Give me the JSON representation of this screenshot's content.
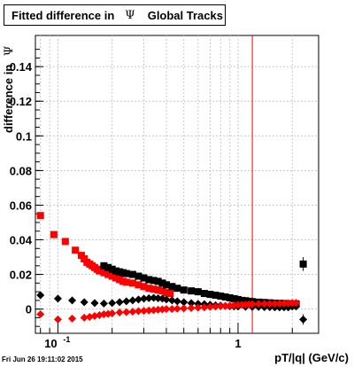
{
  "title": {
    "prefix": "Fitted difference in",
    "symbol": "Ψ",
    "suffix": "Global Tracks"
  },
  "ylabel": {
    "text": "difference in",
    "symbol": "Ψ"
  },
  "xlabel": "pT/|q| (GeV/c)",
  "timestamp": "Fri Jun 26 19:11:02 2015",
  "colors": {
    "series_black": "#000000",
    "series_red": "#ff0000",
    "marker_line": "#cc0000",
    "grid": "#c8c8c8"
  },
  "chart_data": {
    "type": "scatter",
    "x_scale": "log",
    "xlim": [
      0.075,
      2.8
    ],
    "ylim": [
      -0.014,
      0.158
    ],
    "grid": true,
    "y_ticks": [
      0,
      0.02,
      0.04,
      0.06,
      0.08,
      0.1,
      0.12,
      0.14
    ],
    "y_tick_labels": [
      "0",
      "0.02",
      "0.04",
      "0.06",
      "0.08",
      "0.1",
      "0.12",
      "0.14"
    ],
    "x_tick_labels": [
      {
        "value": 0.1,
        "base": "10",
        "exp": "-1"
      },
      {
        "value": 1,
        "base": "1",
        "exp": ""
      }
    ],
    "vertical_line": {
      "x": 1.2,
      "color": "#ff0000"
    },
    "series": [
      {
        "marker": "square",
        "color": "#ff0000",
        "x": [
          0.08,
          0.095,
          0.11,
          0.125,
          0.135,
          0.14,
          0.145,
          0.15,
          0.155,
          0.16,
          0.165,
          0.17,
          0.18,
          0.19,
          0.2,
          0.21,
          0.22,
          0.23,
          0.24,
          0.26,
          0.28,
          0.3,
          0.32,
          0.34,
          0.36,
          0.38,
          0.4,
          0.42
        ],
        "y": [
          0.054,
          0.043,
          0.039,
          0.034,
          0.031,
          0.029,
          0.027,
          0.026,
          0.025,
          0.024,
          0.023,
          0.022,
          0.021,
          0.02,
          0.019,
          0.018,
          0.017,
          0.016,
          0.0155,
          0.015,
          0.014,
          0.013,
          0.012,
          0.0115,
          0.011,
          0.0105,
          0.0095,
          0.009
        ]
      },
      {
        "marker": "square",
        "color": "#000000",
        "x": [
          0.18,
          0.19,
          0.2,
          0.21,
          0.22,
          0.23,
          0.24,
          0.26,
          0.28,
          0.3,
          0.32,
          0.34,
          0.36,
          0.38,
          0.4,
          0.43,
          0.46,
          0.5,
          0.55,
          0.6,
          0.65,
          0.7,
          0.75,
          0.8,
          0.85,
          0.9,
          0.95,
          1.0,
          1.05,
          1.1,
          1.15,
          1.2,
          1.3,
          1.4,
          1.5,
          1.6,
          1.7,
          1.8,
          1.9,
          2.0,
          2.1,
          2.3
        ],
        "y": [
          0.025,
          0.024,
          0.023,
          0.022,
          0.0215,
          0.021,
          0.0205,
          0.02,
          0.019,
          0.018,
          0.017,
          0.0165,
          0.016,
          0.015,
          0.014,
          0.013,
          0.012,
          0.011,
          0.0105,
          0.01,
          0.009,
          0.0085,
          0.008,
          0.0075,
          0.007,
          0.0065,
          0.006,
          0.0055,
          0.005,
          0.0048,
          0.0045,
          0.0043,
          0.004,
          0.0038,
          0.0036,
          0.0034,
          0.0033,
          0.0032,
          0.0031,
          0.003,
          0.003,
          0.026
        ]
      },
      {
        "marker": "diamond",
        "color": "#000000",
        "x": [
          0.08,
          0.1,
          0.12,
          0.14,
          0.16,
          0.18,
          0.2,
          0.22,
          0.24,
          0.26,
          0.28,
          0.3,
          0.32,
          0.34,
          0.36,
          0.38,
          0.4,
          0.43,
          0.46,
          0.5,
          0.55,
          0.6,
          0.65,
          0.7,
          0.75,
          0.8,
          0.85,
          0.9,
          0.95,
          1.0,
          1.1,
          1.2,
          1.3,
          1.4,
          1.5,
          1.6,
          1.7,
          1.8,
          1.9,
          2.0,
          2.1,
          2.3
        ],
        "y": [
          0.008,
          0.006,
          0.005,
          0.004,
          0.0035,
          0.0032,
          0.0035,
          0.004,
          0.0045,
          0.005,
          0.0055,
          0.006,
          0.0063,
          0.0065,
          0.0062,
          0.006,
          0.0055,
          0.005,
          0.0045,
          0.004,
          0.0035,
          0.003,
          0.0028,
          0.0025,
          0.0022,
          0.002,
          0.0018,
          0.0016,
          0.0015,
          0.0014,
          0.0013,
          0.0012,
          0.0012,
          0.0011,
          0.0011,
          0.001,
          0.001,
          0.001,
          0.001,
          0.0015,
          0.0015,
          -0.006
        ]
      },
      {
        "marker": "diamond",
        "color": "#ff0000",
        "x": [
          0.08,
          0.1,
          0.12,
          0.14,
          0.15,
          0.16,
          0.17,
          0.18,
          0.19,
          0.2,
          0.22,
          0.24,
          0.26,
          0.28,
          0.3,
          0.32,
          0.34,
          0.36,
          0.38,
          0.4,
          0.43,
          0.46,
          0.5,
          0.55,
          0.6,
          0.65,
          0.7,
          0.75,
          0.8,
          0.85,
          0.9,
          0.95,
          1.0,
          1.05,
          1.1,
          1.15,
          1.2,
          1.3,
          1.4,
          1.5,
          1.6,
          1.7,
          1.8,
          1.9,
          2.0,
          2.1
        ],
        "y": [
          -0.003,
          -0.006,
          -0.0055,
          -0.005,
          -0.0045,
          -0.004,
          -0.0035,
          -0.003,
          -0.0028,
          -0.0025,
          -0.002,
          -0.0018,
          -0.0015,
          -0.0012,
          -0.001,
          -0.0008,
          -0.0006,
          -0.0004,
          -0.0002,
          0.0,
          0.0,
          0.0002,
          0.0004,
          0.0006,
          0.0008,
          0.001,
          0.0012,
          0.0014,
          0.0016,
          0.0018,
          0.002,
          0.0022,
          0.0024,
          0.0025,
          0.0026,
          0.0027,
          0.0028,
          0.003,
          0.003,
          0.003,
          0.0031,
          0.0032,
          0.0033,
          0.0034,
          0.0035,
          0.0036
        ]
      }
    ]
  }
}
